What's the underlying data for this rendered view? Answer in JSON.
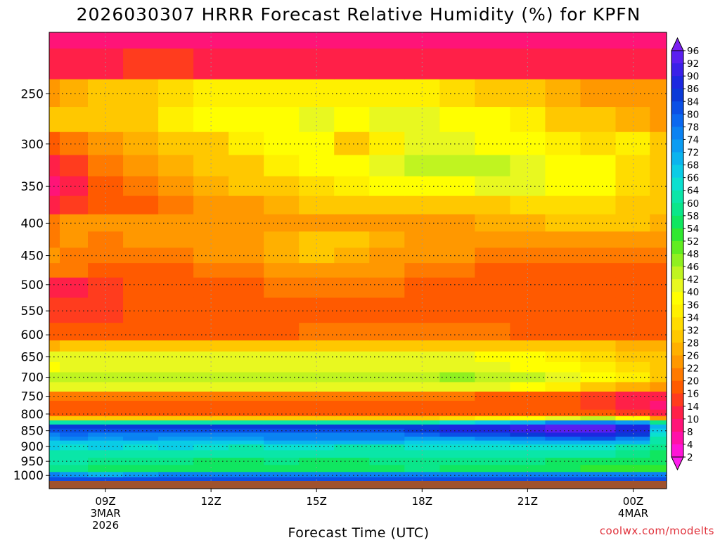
{
  "chart_data": {
    "type": "heatmap",
    "title": "2026030307 HRRR Forecast Relative Humidity (%) for KPFN",
    "xlabel": "Forecast Time (UTC)",
    "ylabel": "",
    "x_ticks": [
      {
        "hour": 9,
        "lines": [
          "09Z",
          "3MAR",
          "2026"
        ]
      },
      {
        "hour": 12,
        "lines": [
          "12Z"
        ]
      },
      {
        "hour": 15,
        "lines": [
          "15Z"
        ]
      },
      {
        "hour": 18,
        "lines": [
          "18Z"
        ]
      },
      {
        "hour": 21,
        "lines": [
          "21Z"
        ]
      },
      {
        "hour": 24,
        "lines": [
          "00Z",
          "4MAR"
        ]
      }
    ],
    "xlim": [
      7.4,
      24.95
    ],
    "y_ticks": [
      250,
      300,
      350,
      400,
      450,
      500,
      550,
      600,
      650,
      700,
      750,
      800,
      850,
      900,
      950,
      1000
    ],
    "ylim": [
      1020,
      200
    ],
    "y_scale": "log",
    "grid": true,
    "colorbar": {
      "labels": [
        96,
        92,
        90,
        86,
        84,
        80,
        78,
        74,
        72,
        68,
        66,
        64,
        60,
        58,
        54,
        52,
        48,
        46,
        42,
        40,
        36,
        34,
        32,
        28,
        26,
        22,
        20,
        16,
        14,
        10,
        8,
        4,
        2
      ],
      "colors": [
        "#7b1ff2",
        "#5a1ff0",
        "#3a20e8",
        "#1c28e0",
        "#0a3ad8",
        "#0a50e6",
        "#0a68f0",
        "#0a82f2",
        "#0a9cf2",
        "#0ab4ee",
        "#0acce6",
        "#0ae0d0",
        "#0ae6a8",
        "#0ae68a",
        "#10e660",
        "#30e830",
        "#60ec20",
        "#90f020",
        "#c0f420",
        "#e8f820",
        "#ffff00",
        "#fff000",
        "#ffdc00",
        "#ffc800",
        "#ffb000",
        "#ff9800",
        "#ff7a00",
        "#ff5a00",
        "#ff3c1e",
        "#ff2048",
        "#ff1478",
        "#ff10a8",
        "#ff14d6",
        "#ff1eee"
      ]
    },
    "levels": [
      200,
      225,
      250,
      275,
      300,
      325,
      350,
      375,
      400,
      425,
      450,
      475,
      500,
      550,
      600,
      625,
      650,
      675,
      700,
      725,
      750,
      775,
      800,
      812,
      825,
      837,
      850,
      862,
      875,
      887,
      900,
      925,
      950,
      975,
      1000,
      1012
    ],
    "hours": [
      7.4,
      8,
      9,
      10,
      11,
      12,
      13,
      14,
      15,
      16,
      17,
      18,
      19,
      20,
      21,
      22,
      23,
      24,
      24.95
    ],
    "rh_profiles": [
      [
        9,
        10,
        25,
        30,
        18,
        12,
        9,
        12,
        20,
        20,
        22,
        20,
        12,
        14,
        16,
        26,
        40,
        38,
        44,
        40,
        20,
        18,
        16,
        30,
        60,
        84,
        80,
        74,
        72,
        66,
        66,
        62,
        60,
        58,
        74,
        80
      ],
      [
        9,
        10,
        26,
        28,
        20,
        14,
        10,
        14,
        22,
        22,
        20,
        20,
        12,
        14,
        18,
        28,
        40,
        40,
        44,
        40,
        20,
        18,
        16,
        30,
        60,
        84,
        80,
        78,
        76,
        66,
        64,
        62,
        60,
        58,
        72,
        80
      ],
      [
        8,
        12,
        28,
        28,
        24,
        20,
        16,
        16,
        24,
        20,
        20,
        18,
        14,
        14,
        18,
        28,
        40,
        40,
        44,
        40,
        20,
        18,
        16,
        30,
        62,
        84,
        80,
        74,
        72,
        66,
        66,
        62,
        58,
        56,
        70,
        80
      ],
      [
        9,
        14,
        30,
        30,
        26,
        24,
        20,
        18,
        24,
        22,
        20,
        18,
        16,
        16,
        18,
        28,
        40,
        40,
        44,
        40,
        20,
        18,
        16,
        30,
        62,
        84,
        80,
        76,
        74,
        66,
        64,
        62,
        58,
        56,
        72,
        80
      ],
      [
        9,
        14,
        32,
        34,
        28,
        26,
        24,
        20,
        22,
        22,
        20,
        18,
        18,
        16,
        18,
        30,
        40,
        40,
        42,
        40,
        20,
        18,
        16,
        30,
        62,
        84,
        80,
        74,
        72,
        66,
        66,
        62,
        58,
        56,
        74,
        80
      ],
      [
        8,
        12,
        34,
        36,
        30,
        28,
        26,
        22,
        22,
        24,
        22,
        20,
        18,
        16,
        18,
        30,
        40,
        40,
        44,
        40,
        20,
        18,
        16,
        30,
        62,
        84,
        80,
        74,
        72,
        66,
        64,
        60,
        56,
        56,
        74,
        80
      ],
      [
        8,
        12,
        34,
        38,
        34,
        30,
        28,
        24,
        22,
        24,
        24,
        20,
        18,
        16,
        18,
        30,
        40,
        40,
        44,
        40,
        20,
        18,
        16,
        30,
        62,
        84,
        80,
        74,
        72,
        66,
        62,
        60,
        56,
        56,
        76,
        80
      ],
      [
        8,
        12,
        34,
        38,
        36,
        34,
        30,
        26,
        24,
        26,
        26,
        22,
        20,
        18,
        18,
        30,
        40,
        40,
        44,
        40,
        20,
        18,
        16,
        30,
        62,
        84,
        80,
        76,
        74,
        68,
        64,
        62,
        58,
        56,
        76,
        80
      ],
      [
        8,
        12,
        34,
        40,
        36,
        36,
        32,
        28,
        24,
        28,
        28,
        22,
        20,
        18,
        20,
        30,
        40,
        40,
        44,
        40,
        20,
        18,
        16,
        30,
        62,
        84,
        80,
        76,
        74,
        68,
        64,
        60,
        56,
        56,
        76,
        80
      ],
      [
        8,
        12,
        34,
        38,
        30,
        36,
        34,
        30,
        24,
        28,
        26,
        22,
        20,
        18,
        20,
        30,
        40,
        40,
        44,
        40,
        20,
        18,
        16,
        30,
        62,
        84,
        80,
        76,
        74,
        68,
        62,
        60,
        56,
        56,
        76,
        80
      ],
      [
        8,
        12,
        34,
        40,
        34,
        40,
        36,
        30,
        22,
        26,
        24,
        22,
        20,
        18,
        20,
        30,
        40,
        40,
        44,
        40,
        20,
        18,
        16,
        30,
        62,
        84,
        80,
        76,
        74,
        68,
        62,
        60,
        58,
        56,
        76,
        80
      ],
      [
        8,
        12,
        34,
        40,
        40,
        42,
        36,
        30,
        24,
        24,
        24,
        20,
        18,
        18,
        20,
        30,
        40,
        40,
        44,
        40,
        20,
        18,
        16,
        30,
        62,
        84,
        84,
        78,
        72,
        66,
        64,
        62,
        58,
        58,
        76,
        80
      ],
      [
        8,
        12,
        32,
        38,
        40,
        44,
        38,
        30,
        24,
        24,
        22,
        20,
        18,
        18,
        20,
        30,
        40,
        40,
        46,
        40,
        20,
        18,
        16,
        32,
        64,
        86,
        86,
        80,
        72,
        66,
        64,
        62,
        58,
        56,
        76,
        80
      ],
      [
        8,
        12,
        30,
        36,
        38,
        42,
        40,
        30,
        26,
        22,
        20,
        18,
        18,
        18,
        20,
        30,
        38,
        40,
        44,
        40,
        18,
        16,
        16,
        34,
        66,
        88,
        88,
        80,
        74,
        66,
        64,
        62,
        58,
        54,
        76,
        80
      ],
      [
        8,
        12,
        28,
        34,
        36,
        40,
        40,
        32,
        26,
        24,
        20,
        18,
        16,
        16,
        18,
        30,
        36,
        38,
        42,
        38,
        18,
        16,
        16,
        36,
        70,
        90,
        90,
        84,
        76,
        68,
        64,
        62,
        58,
        54,
        76,
        80
      ],
      [
        8,
        12,
        26,
        30,
        34,
        38,
        38,
        32,
        28,
        24,
        20,
        18,
        16,
        16,
        18,
        28,
        34,
        36,
        40,
        34,
        16,
        16,
        18,
        40,
        74,
        92,
        92,
        86,
        78,
        68,
        64,
        60,
        56,
        54,
        76,
        80
      ],
      [
        8,
        10,
        24,
        28,
        32,
        36,
        36,
        32,
        28,
        24,
        20,
        18,
        16,
        16,
        18,
        28,
        32,
        34,
        36,
        30,
        14,
        14,
        18,
        42,
        76,
        92,
        92,
        86,
        80,
        70,
        64,
        60,
        56,
        52,
        76,
        80
      ],
      [
        8,
        10,
        22,
        26,
        34,
        32,
        32,
        30,
        28,
        24,
        20,
        18,
        16,
        16,
        16,
        26,
        30,
        32,
        34,
        26,
        12,
        10,
        14,
        36,
        72,
        86,
        88,
        84,
        76,
        68,
        62,
        58,
        54,
        52,
        76,
        80
      ],
      [
        8,
        10,
        22,
        24,
        30,
        30,
        30,
        28,
        26,
        22,
        20,
        18,
        16,
        16,
        16,
        26,
        28,
        30,
        30,
        24,
        12,
        8,
        10,
        24,
        58,
        68,
        66,
        64,
        62,
        60,
        58,
        56,
        54,
        52,
        76,
        80
      ]
    ]
  },
  "credit": "coolwx.com/modelts"
}
